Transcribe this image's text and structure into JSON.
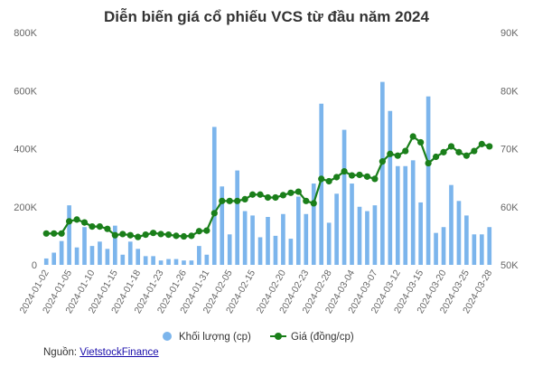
{
  "chart_data": {
    "type": "bar+line",
    "title": "Diễn biến giá cổ phiếu VCS từ đầu năm 2024",
    "left_axis": {
      "ylim": [
        0,
        800000
      ],
      "ticks": [
        0,
        200000,
        400000,
        600000,
        800000
      ],
      "tick_labels": [
        "0",
        "200K",
        "400K",
        "600K",
        "800K"
      ]
    },
    "right_axis": {
      "ylim": [
        50000,
        90000
      ],
      "ticks": [
        50000,
        60000,
        70000,
        80000,
        90000
      ],
      "tick_labels": [
        "50K",
        "60K",
        "70K",
        "80K",
        "90K"
      ]
    },
    "x_tick_labels": [
      "2024-01-02",
      "2024-01-05",
      "2024-01-10",
      "2024-01-15",
      "2024-01-18",
      "2024-01-23",
      "2024-01-26",
      "2024-01-31",
      "2024-02-05",
      "2024-02-15",
      "2024-02-20",
      "2024-02-23",
      "2024-02-28",
      "2024-03-04",
      "2024-03-07",
      "2024-03-12",
      "2024-03-15",
      "2024-03-20",
      "2024-03-25",
      "2024-03-28"
    ],
    "grid": false,
    "legend_position": "bottom-center",
    "series": [
      {
        "name": "Khối lượng (cp)",
        "type": "bar",
        "axis": "left",
        "color": "#7cb5ec",
        "values": [
          22000,
          42000,
          82000,
          205000,
          60000,
          130000,
          65000,
          80000,
          55000,
          135000,
          35000,
          80000,
          55000,
          30000,
          30000,
          15000,
          20000,
          20000,
          15000,
          15000,
          65000,
          35000,
          475000,
          270000,
          105000,
          325000,
          185000,
          170000,
          95000,
          165000,
          100000,
          175000,
          90000,
          235000,
          175000,
          280000,
          555000,
          145000,
          245000,
          465000,
          280000,
          200000,
          185000,
          205000,
          630000,
          530000,
          340000,
          340000,
          360000,
          215000,
          580000,
          110000,
          130000,
          275000,
          220000,
          170000,
          105000,
          105000,
          130000
        ]
      },
      {
        "name": "Giá (đồng/cp)",
        "type": "line",
        "axis": "right",
        "color": "#1a7f1a",
        "values": [
          55400,
          55400,
          55400,
          57500,
          57800,
          57300,
          56600,
          56600,
          56200,
          55100,
          55300,
          55100,
          54800,
          55200,
          55500,
          55300,
          55200,
          55000,
          54900,
          55000,
          55800,
          55900,
          58900,
          61000,
          61000,
          61000,
          61300,
          62100,
          62100,
          61600,
          61600,
          62000,
          62400,
          62600,
          61000,
          60600,
          64800,
          64400,
          65100,
          66100,
          65400,
          65500,
          65200,
          64800,
          67800,
          69100,
          68800,
          69600,
          72100,
          71100,
          67500,
          68600,
          69400,
          70400,
          69400,
          68800,
          69600,
          70800,
          70400
        ]
      }
    ]
  },
  "source": {
    "prefix": "Nguồn: ",
    "link": "VietstockFinance"
  }
}
